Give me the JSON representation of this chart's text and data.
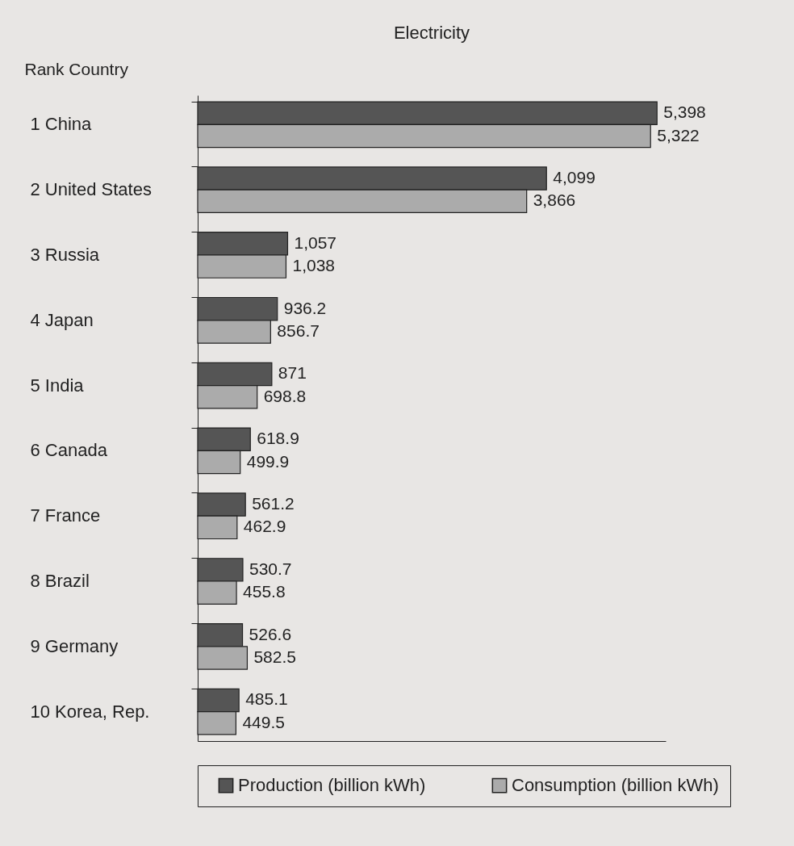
{
  "chart_data": {
    "type": "bar",
    "orientation": "horizontal",
    "title": "Electricity",
    "ylabel": "Rank Country",
    "categories": [
      "1 China",
      "2 United States",
      "3 Russia",
      "4 Japan",
      "5 India",
      "6 Canada",
      "7 France",
      "8 Brazil",
      "9 Germany",
      "10 Korea, Rep."
    ],
    "series": [
      {
        "name": "Production (billion kWh)",
        "color": "#555555",
        "values": [
          5398,
          4099,
          1057,
          936.2,
          871,
          618.9,
          561.2,
          530.7,
          526.6,
          485.1
        ],
        "value_labels": [
          "5,398",
          "4,099",
          "1,057",
          "936.2",
          "871",
          "618.9",
          "561.2",
          "530.7",
          "526.6",
          "485.1"
        ]
      },
      {
        "name": "Consumption (billion kWh)",
        "color": "#ababab",
        "values": [
          5322,
          3866,
          1038,
          856.7,
          698.8,
          499.9,
          462.9,
          455.8,
          582.5,
          449.5
        ],
        "value_labels": [
          "5,322",
          "3,866",
          "1,038",
          "856.7",
          "698.8",
          "499.9",
          "462.9",
          "455.8",
          "582.5",
          "449.5"
        ]
      }
    ],
    "legend": "bottom",
    "grid": false,
    "tick_labels": "y"
  }
}
